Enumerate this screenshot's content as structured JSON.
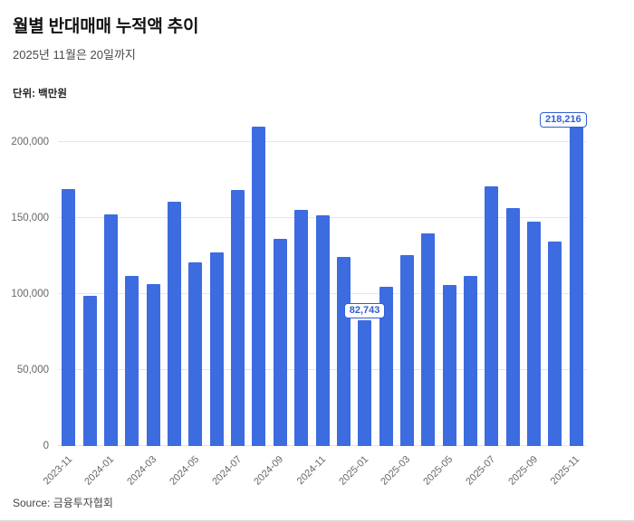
{
  "header": {
    "title": "월별 반대매매 누적액 추이",
    "subtitle": "2025년 11월은 20일까지",
    "unit_label": "단위: 백만원"
  },
  "footer": {
    "source": "Source: 금융투자협회"
  },
  "colors": {
    "bar": "#3d6be0",
    "annotation": "#2f5ed3",
    "grid": "#e6e6e6",
    "axis_text": "#666666"
  },
  "chart_data": {
    "type": "bar",
    "title": "월별 반대매매 누적액 추이",
    "subtitle": "2025년 11월은 20일까지",
    "unit": "백만원",
    "categories": [
      "2023-11",
      "2023-12",
      "2024-01",
      "2024-02",
      "2024-03",
      "2024-04",
      "2024-05",
      "2024-06",
      "2024-07",
      "2024-08",
      "2024-09",
      "2024-10",
      "2024-11",
      "2024-12",
      "2025-01",
      "2025-02",
      "2025-03",
      "2025-04",
      "2025-05",
      "2025-06",
      "2025-07",
      "2025-08",
      "2025-09",
      "2025-10",
      "2025-11"
    ],
    "values": [
      169000,
      99000,
      152500,
      111500,
      106500,
      160500,
      120500,
      127500,
      168500,
      210000,
      136000,
      155000,
      151500,
      124000,
      82743,
      104500,
      125500,
      139500,
      106000,
      111500,
      170500,
      156500,
      147500,
      134500,
      218216
    ],
    "ylim": [
      0,
      220000
    ],
    "grid": true,
    "legend": "none",
    "x_tick_every": 2,
    "y_ticks": [
      {
        "value": 0,
        "label": "0"
      },
      {
        "value": 50000,
        "label": "50,000"
      },
      {
        "value": 100000,
        "label": "100,000"
      },
      {
        "value": 150000,
        "label": "150,000"
      },
      {
        "value": 200000,
        "label": "200,000"
      }
    ],
    "annotations": [
      {
        "index": 14,
        "value": 82743,
        "label": "82,743"
      },
      {
        "index": 24,
        "value": 218216,
        "label": "218,216"
      }
    ]
  }
}
